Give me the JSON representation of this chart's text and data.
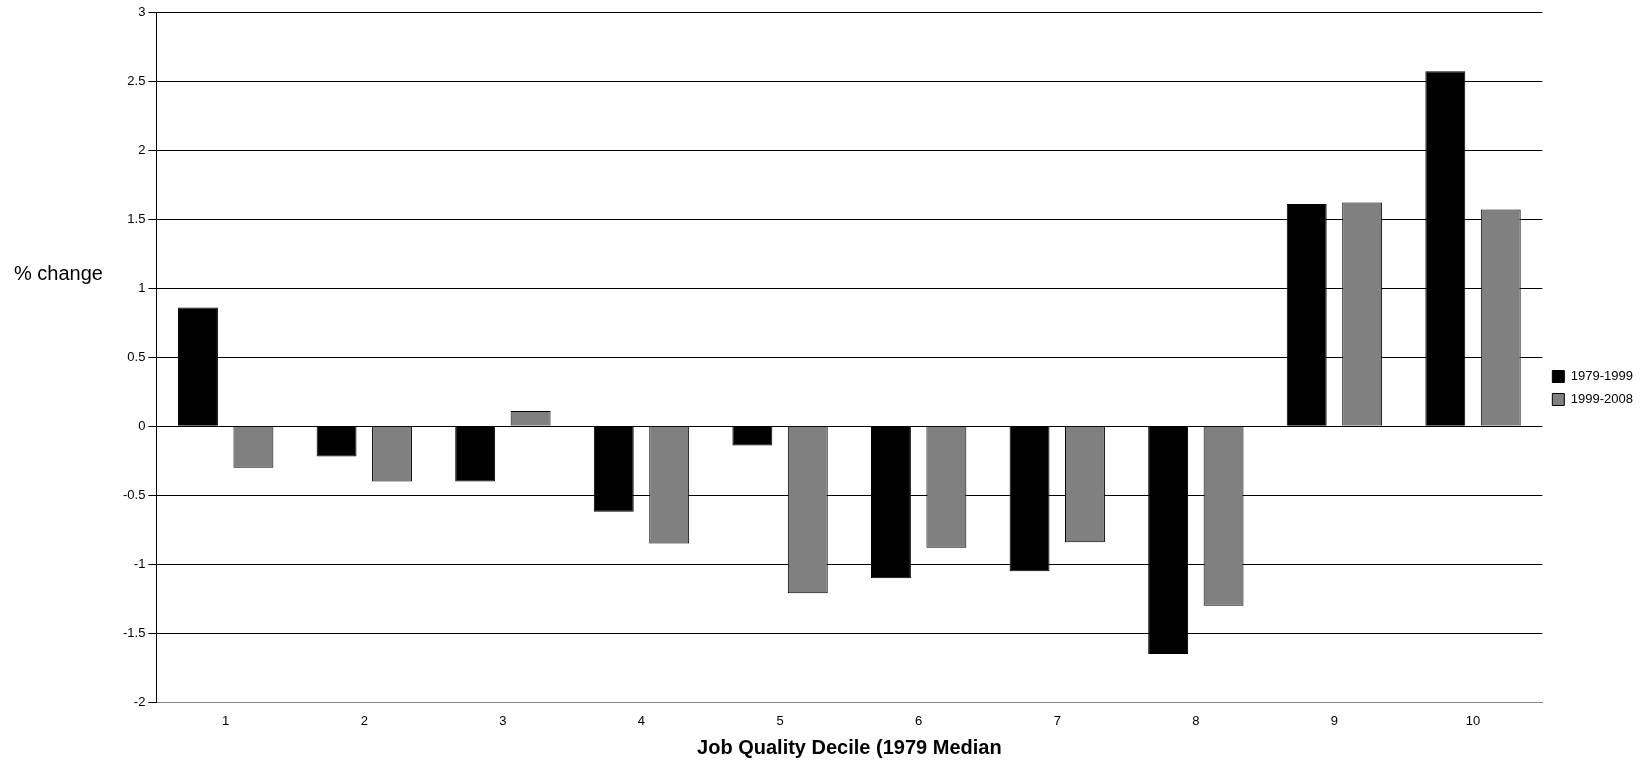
{
  "chart_data": {
    "type": "bar",
    "xlabel": "Job Quality Decile (1979 Median",
    "ylabel": "% change",
    "categories": [
      "1",
      "2",
      "3",
      "4",
      "5",
      "6",
      "7",
      "8",
      "9",
      "10"
    ],
    "series": [
      {
        "name": "1979-1999",
        "color": "#000000",
        "values": [
          0.86,
          -0.22,
          -0.4,
          -0.62,
          -0.14,
          -1.1,
          -1.05,
          -1.65,
          1.61,
          2.57
        ]
      },
      {
        "name": "1999-2008",
        "color": "#808080",
        "values": [
          -0.3,
          -0.4,
          0.11,
          -0.85,
          -1.21,
          -0.88,
          -0.84,
          -1.3,
          1.62,
          1.57
        ]
      }
    ],
    "ylim": [
      -2,
      3
    ],
    "yticks": [
      -2,
      -1.5,
      -1,
      -0.5,
      0,
      0.5,
      1,
      1.5,
      2,
      2.5,
      3
    ],
    "grid": "y",
    "legend": "right"
  }
}
